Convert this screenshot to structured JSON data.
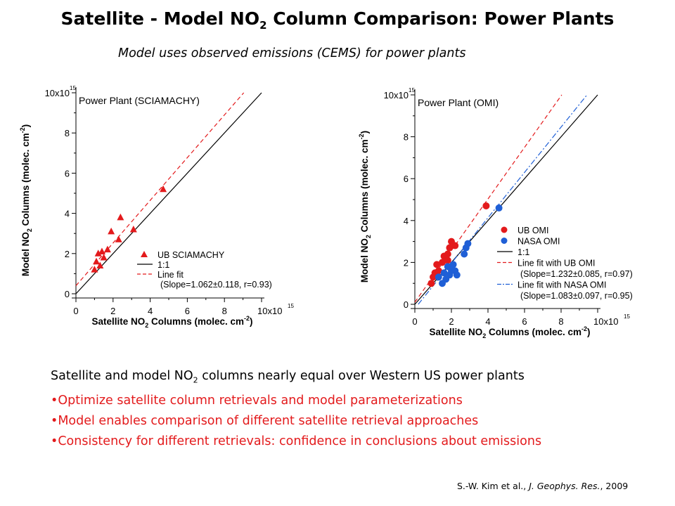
{
  "title": {
    "main": "Satellite - Model NO",
    "sub": "2",
    "rest": " Column Comparison: Power Plants"
  },
  "subtitle": "Model uses observed emissions (CEMS) for power plants",
  "summary": {
    "line1_a": "Satellite and model NO",
    "line1_sub": "2",
    "line1_b": " columns nearly equal over Western US power plants",
    "bullets": [
      "•Optimize satellite column retrievals and model parameterizations",
      "•Model enables comparison of different satellite retrieval approaches",
      "•Consistency for different retrievals: confidence in conclusions about emissions"
    ]
  },
  "citation": {
    "authors": "S.-W. Kim et al., ",
    "journal": "J. Geophys. Res.",
    "year": ", 2009"
  },
  "colors": {
    "red": "#e31a1c",
    "blue": "#1f5fd6",
    "bullet_red": "#e31a1c"
  },
  "chart_data": [
    {
      "type": "scatter",
      "title": "Power Plant (SCIAMACHY)",
      "xlabel": "Satellite NO2 Columns (molec. cm-2)",
      "ylabel": "Model NO2 Columns (molec. cm-2)",
      "xlim": [
        0,
        10
      ],
      "ylim": [
        0,
        10
      ],
      "scale_exponent": "10x10^15",
      "x_ticks": [
        "0",
        "2",
        "4",
        "6",
        "8",
        "10x10"
      ],
      "y_ticks": [
        "0",
        "2",
        "4",
        "6",
        "8",
        "10x10"
      ],
      "exponent_label": "15",
      "series": [
        {
          "name": "UB SCIAMACHY",
          "marker": "triangle",
          "color": "#e31a1c",
          "points": [
            [
              1.0,
              1.2
            ],
            [
              1.1,
              1.6
            ],
            [
              1.2,
              2.0
            ],
            [
              1.3,
              1.4
            ],
            [
              1.4,
              2.1
            ],
            [
              1.5,
              1.8
            ],
            [
              1.7,
              2.2
            ],
            [
              1.9,
              3.1
            ],
            [
              2.3,
              2.7
            ],
            [
              2.4,
              3.8
            ],
            [
              3.1,
              3.2
            ],
            [
              4.7,
              5.2
            ]
          ]
        }
      ],
      "lines": [
        {
          "name": "1:1",
          "style": "solid",
          "color": "#000000",
          "slope": 1.0,
          "intercept": 0
        },
        {
          "name": "Line fit",
          "style": "dashed",
          "color": "#e31a1c",
          "slope": 1.062,
          "intercept": 0.4
        }
      ],
      "legend": [
        {
          "label": "UB SCIAMACHY"
        },
        {
          "label": "1:1"
        },
        {
          "label": "Line fit"
        },
        {
          "label": "(Slope=1.062±0.118, r=0.93)"
        }
      ],
      "legend_position": "bottom-right"
    },
    {
      "type": "scatter",
      "title": "Power Plant (OMI)",
      "xlabel": "Satellite NO2 Columns (molec. cm-2)",
      "ylabel": "Model NO2 Columns (molec. cm-2)",
      "xlim": [
        0,
        10
      ],
      "ylim": [
        0,
        10
      ],
      "x_ticks": [
        "0",
        "2",
        "4",
        "6",
        "8",
        "10x10"
      ],
      "y_ticks": [
        "0",
        "2",
        "4",
        "6",
        "8",
        "10x10"
      ],
      "exponent_label": "15",
      "series": [
        {
          "name": "UB OMI",
          "marker": "circle",
          "color": "#e31a1c",
          "points": [
            [
              0.9,
              1.0
            ],
            [
              1.0,
              1.3
            ],
            [
              1.1,
              1.5
            ],
            [
              1.2,
              1.9
            ],
            [
              1.3,
              1.6
            ],
            [
              1.5,
              2.0
            ],
            [
              1.6,
              2.3
            ],
            [
              1.8,
              2.1
            ],
            [
              1.8,
              2.4
            ],
            [
              1.9,
              2.7
            ],
            [
              2.0,
              3.0
            ],
            [
              2.2,
              2.8
            ],
            [
              3.9,
              4.7
            ]
          ]
        },
        {
          "name": "NASA OMI",
          "marker": "circle",
          "color": "#1f5fd6",
          "points": [
            [
              1.3,
              1.3
            ],
            [
              1.5,
              1.0
            ],
            [
              1.6,
              1.5
            ],
            [
              1.7,
              1.2
            ],
            [
              1.8,
              1.8
            ],
            [
              1.9,
              1.4
            ],
            [
              2.0,
              1.6
            ],
            [
              2.1,
              1.9
            ],
            [
              2.2,
              1.6
            ],
            [
              2.3,
              1.4
            ],
            [
              2.7,
              2.4
            ],
            [
              2.8,
              2.7
            ],
            [
              2.9,
              2.9
            ],
            [
              4.6,
              4.6
            ]
          ]
        }
      ],
      "lines": [
        {
          "name": "1:1",
          "style": "solid",
          "color": "#000000",
          "slope": 1.0,
          "intercept": 0
        },
        {
          "name": "Line fit with UB OMI",
          "style": "dashed",
          "color": "#e31a1c",
          "slope": 1.232,
          "intercept": 0.1
        },
        {
          "name": "Line fit with NASA OMI",
          "style": "dashdot",
          "color": "#1f5fd6",
          "slope": 1.083,
          "intercept": -0.2
        }
      ],
      "legend": [
        {
          "label": "UB OMI"
        },
        {
          "label": "NASA OMI"
        },
        {
          "label": "1:1"
        },
        {
          "label": "Line fit with UB OMI"
        },
        {
          "label": "(Slope=1.232±0.085, r=0.97)"
        },
        {
          "label": "Line fit with NASA OMI"
        },
        {
          "label": "(Slope=1.083±0.097, r=0.95)"
        }
      ],
      "legend_position": "bottom-right"
    }
  ]
}
